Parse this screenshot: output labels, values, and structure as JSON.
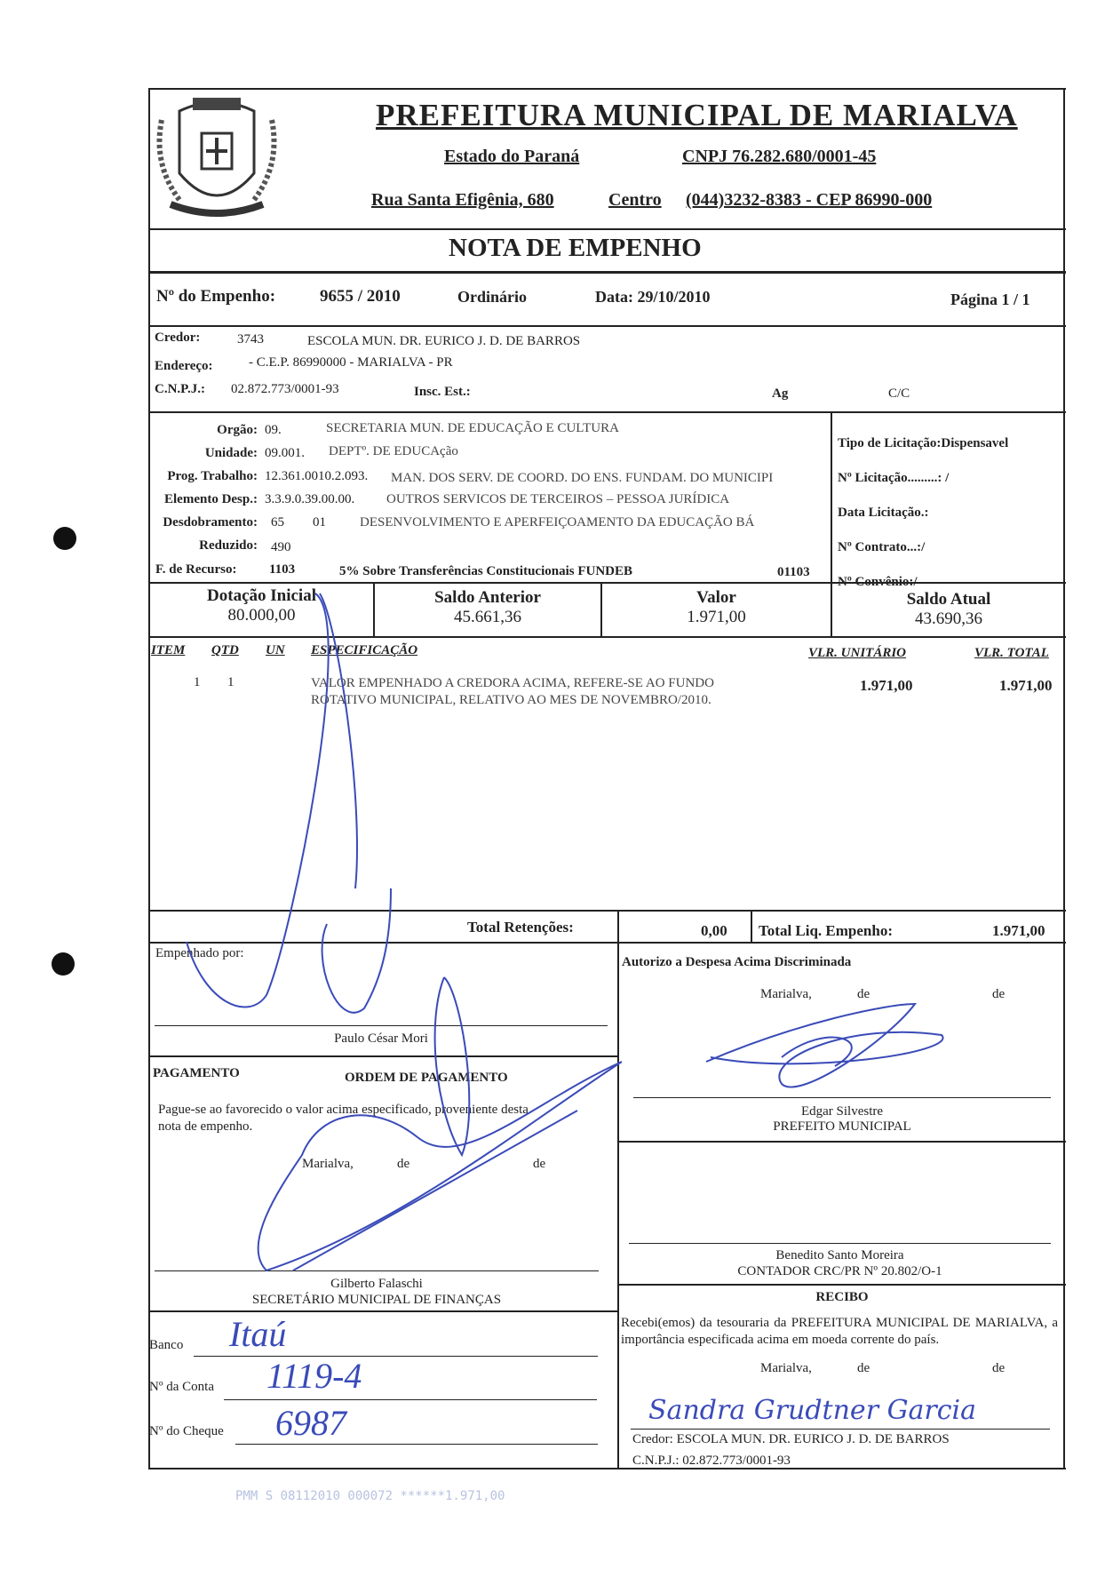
{
  "header": {
    "title": "PREFEITURA MUNICIPAL DE MARIALVA",
    "state": "Estado do Paraná",
    "cnpj": "CNPJ 76.282.680/0001-45",
    "address": "Rua Santa Efigênia, 680",
    "district": "Centro",
    "phone_cep": "(044)3232-8383  -  CEP 86990-000",
    "logo": "marialva-coat-of-arms"
  },
  "doc_title": "NOTA  DE  EMPENHO",
  "empenho": {
    "label": "Nº do Empenho:",
    "number": "9655 / 2010",
    "type": "Ordinário",
    "date": "Data: 29/10/2010",
    "page": "Página   1 / 1"
  },
  "credor": {
    "credor_label": "Credor:",
    "credor_code": "3743",
    "credor_name": "ESCOLA MUN. DR. EURICO J. D. DE BARROS",
    "endereco_label": "Endereço:",
    "endereco": "- C.E.P. 86990000  -  MARIALVA  -  PR",
    "cnpj_label": "C.N.P.J.:",
    "cnpj": "02.872.773/0001-93",
    "insc_label": "Insc. Est.:",
    "ag_label": "Ag",
    "cc_label": "C/C"
  },
  "budget": {
    "orgao_label": "Orgão:",
    "orgao_code": "09.",
    "orgao_desc": "SECRETARIA MUN. DE EDUCAÇÃO E CULTURA",
    "unidade_label": "Unidade:",
    "unidade_code": "09.001.",
    "unidade_desc": "DEPTº. DE EDUCAção",
    "prog_label": "Prog. Trabalho:",
    "prog_code": "12.361.0010.2.093.",
    "prog_desc": "MAN. DOS SERV. DE COORD. DO ENS. FUNDAM. DO MUNICIPI",
    "elem_label": "Elemento Desp.:",
    "elem_code": "3.3.9.0.39.00.00.",
    "elem_desc": "OUTROS SERVICOS DE TERCEIROS – PESSOA JURÍDICA",
    "desd_label": "Desdobramento:",
    "desd_code": "65",
    "desd_sub": "01",
    "desd_desc": "DESENVOLVIMENTO E APERFEIÇOAMENTO DA EDUCAÇÃO BÁ",
    "red_label": "Reduzido:",
    "red_code": "490",
    "fonte_label": "F. de Recurso:",
    "fonte_code": "1103",
    "fonte_desc": "5% Sobre Transferências Constitucionais FUNDEB",
    "fonte_code2": "01103"
  },
  "licitacao": {
    "tipo": "Tipo de Licitação:Dispensavel",
    "numero": "Nº Licitação.........: /",
    "data": "Data Licitação.:",
    "contrato": "Nº Contrato...:/",
    "convenio": "Nº Convênio:/"
  },
  "balances": [
    {
      "label": "Dotação Inicial",
      "value": "80.000,00"
    },
    {
      "label": "Saldo Anterior",
      "value": "45.661,36"
    },
    {
      "label": "Valor",
      "value": "1.971,00"
    },
    {
      "label": "Saldo Atual",
      "value": "43.690,36"
    }
  ],
  "items": {
    "headers": {
      "item": "ITEM",
      "qtd": "QTD",
      "un": "UN",
      "spec": "ESPECIFICAÇÃO",
      "unit": "VLR. UNITÁRIO",
      "total": "VLR. TOTAL"
    },
    "rows": [
      {
        "item": "1",
        "qtd": "1",
        "un": "",
        "spec1": "VALOR EMPENHADO A CREDORA ACIMA, REFERE-SE AO FUNDO",
        "spec2": "ROTATIVO MUNICIPAL, RELATIVO AO MES DE NOVEMBRO/2010.",
        "unit": "1.971,00",
        "total": "1.971,00"
      }
    ]
  },
  "totals": {
    "ret_label": "Total Retenções:",
    "ret_value": "0,00",
    "liq_label": "Total Liq. Empenho:",
    "liq_value": "1.971,00"
  },
  "empenhado": {
    "label": "Empenhado por:",
    "name": "Paulo César Mori"
  },
  "autorizo": {
    "label": "Autorizo a Despesa Acima Discriminada",
    "city": "Marialva,",
    "de1": "de",
    "de2": "de",
    "name": "Edgar Silvestre",
    "role": "PREFEITO MUNICIPAL"
  },
  "pagamento": {
    "label": "PAGAMENTO",
    "order": "ORDEM DE PAGAMENTO",
    "text1": "Pague-se ao favorecido o valor acima especificado, proveniente  desta",
    "text2": "nota de empenho.",
    "city": "Marialva,",
    "de1": "de",
    "de2": "de",
    "name": "Gilberto Falaschi",
    "role": "SECRETÁRIO MUNICIPAL DE FINANÇAS"
  },
  "contador": {
    "name": "Benedito Santo Moreira",
    "role": "CONTADOR CRC/PR Nº 20.802/O-1"
  },
  "bank": {
    "banco_label": "Banco",
    "banco": "Itaú",
    "conta_label": "Nº da Conta",
    "conta": "1119-4",
    "cheque_label": "Nº do Cheque",
    "cheque": "6987"
  },
  "recibo": {
    "title": "RECIBO",
    "text": "Recebi(emos) da tesouraria da PREFEITURA MUNICIPAL DE MARIALVA, a importância especificada acima em moeda corrente do país.",
    "city": "Marialva,",
    "de1": "de",
    "de2": "de",
    "signature": "Sandra Grudtner Garcia",
    "credor": "Credor:  ESCOLA MUN. DR. EURICO J. D. DE BARROS",
    "cnpj": "C.N.P.J.: 02.872.773/0001-93"
  },
  "footer_stamp": "PMM S 08112010 000072 ******1.971,00",
  "colors": {
    "ink": "#222222",
    "pen": "#3a4bb8"
  }
}
